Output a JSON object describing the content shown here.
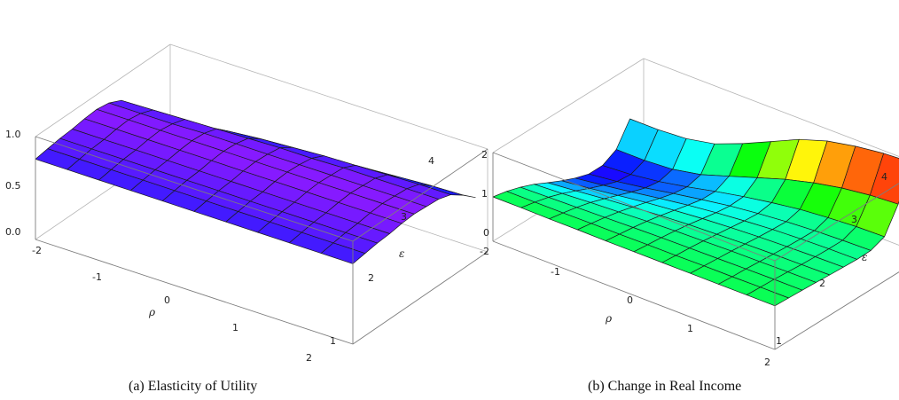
{
  "chart_data": [
    {
      "type": "surface3d",
      "caption": "(a) Elasticity of Utility",
      "xlabel": "ρ",
      "ylabel": "ε",
      "x_ticks": [
        "-2",
        "-1",
        "0",
        "1",
        "2"
      ],
      "y_ticks": [
        "1",
        "2",
        "3",
        "4"
      ],
      "z_ticks": [
        "0.0",
        "0.5",
        "1.0"
      ],
      "xlim": [
        -2,
        2
      ],
      "ylim": [
        1,
        4.3
      ],
      "zlim": [
        0,
        1.05
      ],
      "grid_x": [
        -2.0,
        -1.6,
        -1.2,
        -0.8,
        -0.4,
        0.0,
        0.4,
        0.8,
        1.2,
        1.6,
        2.0
      ],
      "grid_y": [
        1.0,
        1.3,
        1.6,
        1.9,
        2.2,
        2.5,
        2.8,
        3.1,
        3.4,
        3.7,
        4.0
      ],
      "surface_z": [
        [
          0.82,
          0.82,
          0.82,
          0.82,
          0.82,
          0.82,
          0.82,
          0.82,
          0.82,
          0.82,
          0.82
        ],
        [
          0.84,
          0.84,
          0.84,
          0.84,
          0.84,
          0.84,
          0.84,
          0.84,
          0.84,
          0.84,
          0.84
        ],
        [
          0.86,
          0.86,
          0.86,
          0.86,
          0.86,
          0.86,
          0.86,
          0.86,
          0.86,
          0.86,
          0.86
        ],
        [
          0.87,
          0.87,
          0.87,
          0.87,
          0.87,
          0.87,
          0.87,
          0.87,
          0.87,
          0.87,
          0.87
        ],
        [
          0.89,
          0.89,
          0.89,
          0.89,
          0.89,
          0.89,
          0.89,
          0.89,
          0.89,
          0.89,
          0.89
        ],
        [
          0.9,
          0.9,
          0.9,
          0.9,
          0.9,
          0.9,
          0.9,
          0.9,
          0.9,
          0.9,
          0.9
        ],
        [
          0.88,
          0.88,
          0.88,
          0.89,
          0.89,
          0.89,
          0.89,
          0.89,
          0.89,
          0.89,
          0.89
        ],
        [
          0.82,
          0.83,
          0.84,
          0.85,
          0.86,
          0.87,
          0.87,
          0.88,
          0.88,
          0.88,
          0.88
        ],
        [
          0.62,
          0.66,
          0.7,
          0.74,
          0.77,
          0.79,
          0.81,
          0.82,
          0.83,
          0.84,
          0.84
        ],
        [
          0.36,
          0.42,
          0.48,
          0.54,
          0.59,
          0.63,
          0.67,
          0.7,
          0.72,
          0.74,
          0.75
        ],
        [
          0.0,
          0.05,
          0.13,
          0.22,
          0.3,
          0.38,
          0.45,
          0.51,
          0.56,
          0.6,
          0.64
        ]
      ]
    },
    {
      "type": "surface3d",
      "caption": "(b) Change in Real Income",
      "xlabel": "ρ",
      "ylabel": "ε",
      "x_ticks": [
        "-2",
        "-1",
        "0",
        "1",
        "2"
      ],
      "y_ticks": [
        "1",
        "2",
        "3",
        "4"
      ],
      "z_ticks": [
        "0",
        "1",
        "2"
      ],
      "xlim": [
        -2,
        2
      ],
      "ylim": [
        1,
        4.3
      ],
      "zlim": [
        0,
        2.4
      ],
      "grid_x": [
        -2.0,
        -1.6,
        -1.2,
        -0.8,
        -0.4,
        0.0,
        0.4,
        0.8,
        1.2,
        1.6,
        2.0
      ],
      "grid_y": [
        1.0,
        1.3,
        1.6,
        1.9,
        2.2,
        2.5,
        2.8,
        3.1,
        3.4,
        3.7,
        4.0
      ],
      "surface_z": [
        [
          1.2,
          1.2,
          1.19,
          1.19,
          1.18,
          1.18,
          1.18,
          1.18,
          1.18,
          1.18,
          1.18
        ],
        [
          1.12,
          1.12,
          1.12,
          1.13,
          1.13,
          1.14,
          1.14,
          1.15,
          1.15,
          1.16,
          1.16
        ],
        [
          1.0,
          1.02,
          1.04,
          1.06,
          1.08,
          1.1,
          1.11,
          1.12,
          1.13,
          1.14,
          1.14
        ],
        [
          0.85,
          0.89,
          0.94,
          0.98,
          1.02,
          1.05,
          1.07,
          1.09,
          1.1,
          1.11,
          1.12
        ],
        [
          0.66,
          0.73,
          0.81,
          0.88,
          0.94,
          0.99,
          1.02,
          1.05,
          1.07,
          1.08,
          1.09
        ],
        [
          0.48,
          0.57,
          0.67,
          0.77,
          0.85,
          0.92,
          0.97,
          1.01,
          1.04,
          1.06,
          1.07
        ],
        [
          0.32,
          0.42,
          0.53,
          0.65,
          0.76,
          0.85,
          0.92,
          0.98,
          1.02,
          1.04,
          1.05
        ],
        [
          0.2,
          0.29,
          0.41,
          0.55,
          0.68,
          0.8,
          0.89,
          0.96,
          1.01,
          1.04,
          1.06
        ],
        [
          0.2,
          0.25,
          0.35,
          0.5,
          0.67,
          0.82,
          0.95,
          1.06,
          1.13,
          1.18,
          1.2
        ],
        [
          0.4,
          0.4,
          0.45,
          0.6,
          0.85,
          1.1,
          1.35,
          1.55,
          1.7,
          1.8,
          1.85
        ],
        [
          1.0,
          1.0,
          1.05,
          1.2,
          1.5,
          1.85,
          2.2,
          2.45,
          2.6,
          2.7,
          2.75
        ]
      ]
    }
  ]
}
